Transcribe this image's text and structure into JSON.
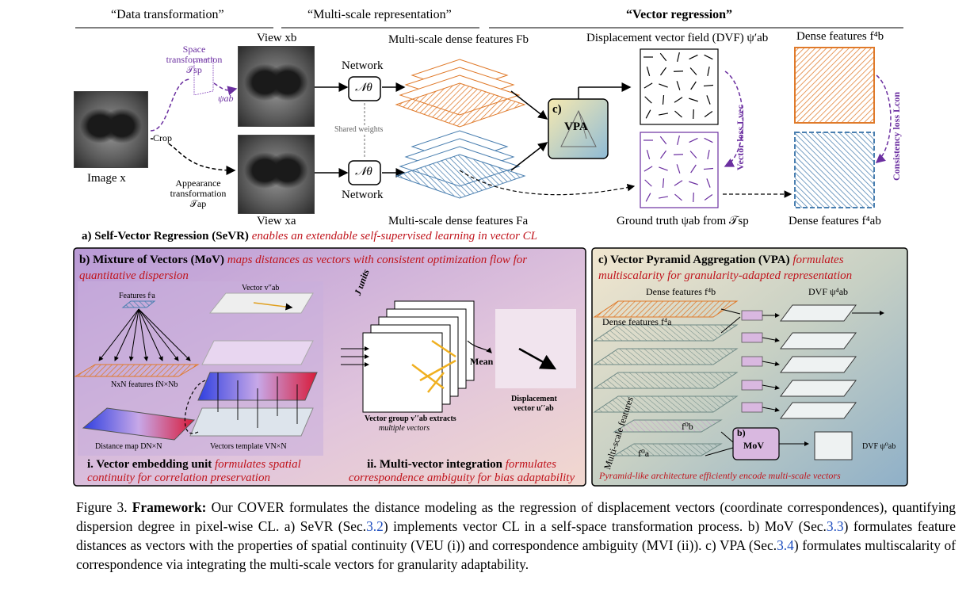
{
  "header": {
    "col1": "“Data transformation”",
    "col2": "“Multi-scale representation”",
    "col3": "“Vector regression”"
  },
  "sevr": {
    "image_x": "Image x",
    "crop": "Crop",
    "view_b": "View xb",
    "view_a": "View xa",
    "space_tf": "Space transformation 𝒯sp",
    "psi_ab": "ψab",
    "appearance_tf": "Appearance transformation 𝒯ap",
    "network": "Network",
    "n_theta": "𝒩θ",
    "shared_weights": "Shared weights",
    "ms_feat_b": "Multi-scale dense features Fb",
    "ms_feat_a": "Multi-scale dense features Fa",
    "vpa_c": "c)",
    "vpa": "VPA",
    "dvf": "Displacement vector field (DVF) ψ′ab",
    "gt": "Ground truth ψab from 𝒯sp",
    "vector_loss": "Vector loss Lvec",
    "dense_b": "Dense features f⁴b",
    "dense_ab": "Dense features f⁴ab",
    "consistency_loss": "Consistency loss Lcon",
    "caption_label": "a) Self-Vector Regression (SeVR)",
    "caption_red": "enables an extendable self-supervised learning in vector CL"
  },
  "mov": {
    "title_b": "b) Mixture of Vectors (MoV)",
    "title_red": "maps distances as vectors with consistent optimization flow for quantitative dispersion",
    "features_fa": "Features fᶦa",
    "vector_v": "Vector v′′ab",
    "j_units": "J units",
    "nxn": "NxN features fN×Nb",
    "distance_map": "Distance map DN×N",
    "vectors_template": "Vectors template VN×N",
    "mean": "Mean",
    "vector_group": "Vector group v′′ab extracts",
    "multiple_vectors": "multiple vectors",
    "displacement": "Displacement",
    "vector_u": "vector u′′ab",
    "veu_b": "i. Vector embedding unit",
    "veu_red": "formulates spatial continuity for correlation preservation",
    "mvi_b": "ii. Multi-vector integration",
    "mvi_red": "formulates correspondence ambiguity for bias adaptability"
  },
  "vpa_panel": {
    "title_b": "c) Vector Pyramid Aggregation (VPA)",
    "title_red": "formulates multiscalarity for granularity-adapted representation",
    "dense_b": "Dense features f⁴b",
    "dense_a": "Dense features f⁴a",
    "dvf4": "DVF ψ⁴ab",
    "multi_scale": "Multi-scale features",
    "f0b": "f⁰b",
    "f0a": "f⁰a",
    "mov_b": "b)",
    "mov": "MoV",
    "mov_small": "MoV",
    "dvf0": "DVF ψ⁰ab",
    "bottom_red": "Pyramid-like architecture efficiently encode multi-scale vectors"
  },
  "caption": {
    "fig": "Figure 3.",
    "bold": "Framework:",
    "s1": "Our COVER formulates the distance modeling as the regression of displacement vectors (coordinate correspondences), quantifying dispersion degree in pixel-wise CL. a) SeVR (Sec.",
    "r1": "3.2",
    "s2": ") implements vector CL in a self-space transformation process. b) MoV (Sec.",
    "r2": "3.3",
    "s3": ") formulates feature distances as vectors with the properties of spatial continuity (VEU (i)) and correspondence ambiguity (MVI (ii)). c) VPA (Sec.",
    "r3": "3.4",
    "s4": ") formulates multiscalarity of correspondence via integrating the multi-scale vectors for granularity adaptability."
  },
  "colors": {
    "orange": "#e07a2a",
    "blue": "#4a7fb0",
    "purple": "#6b2fa0",
    "red_text": "#c0141c",
    "mov_bg": "#d9b8e0",
    "vpa_bg": "#b9c8c4"
  }
}
